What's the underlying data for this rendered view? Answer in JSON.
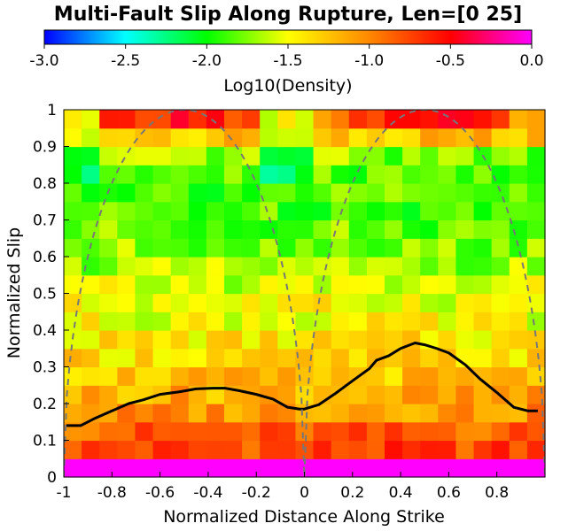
{
  "chart_data": {
    "type": "heatmap",
    "title": "Multi-Fault Slip Along Rupture, Len=[0 25]",
    "xlabel": "Normalized Distance Along Strike",
    "ylabel": "Normalized Slip",
    "xlim": [
      -1,
      1
    ],
    "ylim": [
      0,
      1
    ],
    "xticks": [
      "-1",
      "-0.8",
      "-0.6",
      "-0.4",
      "-0.2",
      "0",
      "0.2",
      "0.4",
      "0.6",
      "0.8"
    ],
    "yticks": [
      "0",
      "0.1",
      "0.2",
      "0.3",
      "0.4",
      "0.5",
      "0.6",
      "0.7",
      "0.8",
      "0.9",
      "1"
    ],
    "grid": false,
    "colorbar": {
      "label": "Log10(Density)",
      "range": [
        -3,
        0
      ],
      "ticks": [
        "-3.0",
        "-2.5",
        "-2.0",
        "-1.5",
        "-1.0",
        "-0.5",
        "0.0"
      ],
      "colors": [
        "#0000ff",
        "#00ffff",
        "#00ff00",
        "#ffff00",
        "#ff8800",
        "#ff0000",
        "#ff00ff"
      ]
    },
    "heatmap": {
      "x_bins": 27,
      "y_bins": 20,
      "base_rows_bottom_to_top": [
        0.0,
        -0.75,
        -0.85,
        -1.05,
        -1.15,
        -1.25,
        -1.35,
        -1.4,
        -1.5,
        -1.5,
        -1.6,
        -1.7,
        -1.75,
        -1.8,
        -1.85,
        -1.85,
        -1.85,
        -1.75,
        -1.25,
        -0.9
      ],
      "notes": "bottom row saturates at 0.0 (magenta); top row is high density (orange/red) near x=±0.5"
    },
    "series": [
      {
        "style": "solid",
        "color": "#000000",
        "x": [
          -0.99,
          -0.93,
          -0.87,
          -0.8,
          -0.73,
          -0.67,
          -0.6,
          -0.52,
          -0.45,
          -0.38,
          -0.33,
          -0.27,
          -0.2,
          -0.13,
          -0.07,
          -0.02,
          0.0,
          0.06,
          0.13,
          0.2,
          0.27,
          0.3,
          0.35,
          0.4,
          0.46,
          0.5,
          0.55,
          0.6,
          0.67,
          0.73,
          0.8,
          0.87,
          0.93,
          0.97
        ],
        "y": [
          0.14,
          0.14,
          0.16,
          0.18,
          0.2,
          0.21,
          0.225,
          0.232,
          0.24,
          0.242,
          0.242,
          0.235,
          0.225,
          0.212,
          0.19,
          0.185,
          0.185,
          0.197,
          0.228,
          0.262,
          0.295,
          0.318,
          0.33,
          0.35,
          0.365,
          0.36,
          0.35,
          0.338,
          0.305,
          0.267,
          0.23,
          0.19,
          0.18,
          0.18
        ]
      },
      {
        "style": "dashed",
        "color": "#777777",
        "function": "sqrt(1 - ((x - 0.5*sign(x)) / 0.5)^2)"
      }
    ]
  }
}
